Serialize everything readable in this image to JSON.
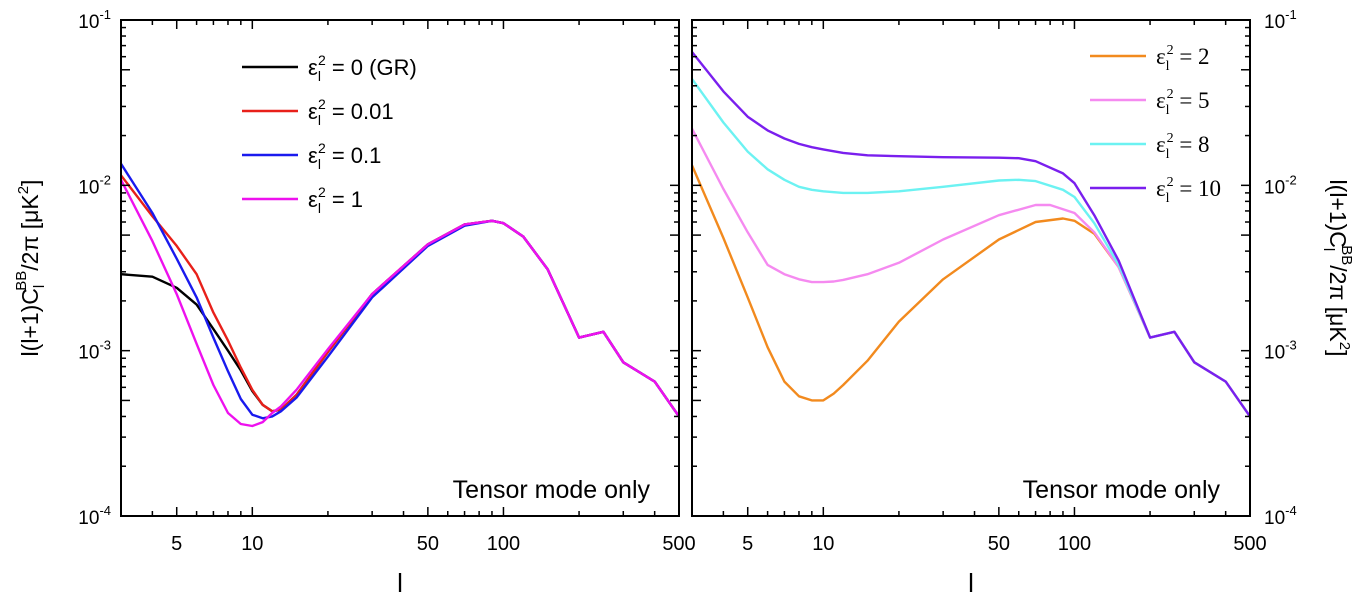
{
  "chart_data": [
    {
      "type": "line",
      "xscale": "log",
      "yscale": "log",
      "xlim": [
        3,
        500
      ],
      "ylim": [
        0.0001,
        0.1
      ],
      "xlabel": "l",
      "ylabel_parts": {
        "pre": "l(l+1)C",
        "sub": "l",
        "sup": "BB",
        "post": "/2π [μK",
        "unit_sup": "2",
        "end": "]"
      },
      "x_ticks": [
        {
          "value": 5,
          "label": "5"
        },
        {
          "value": 10,
          "label": "10"
        },
        {
          "value": 50,
          "label": "50"
        },
        {
          "value": 100,
          "label": "100"
        },
        {
          "value": 500,
          "label": "500"
        }
      ],
      "y_ticks": [
        {
          "value": 0.1,
          "mant": "10",
          "exp": "-1"
        },
        {
          "value": 0.01,
          "mant": "10",
          "exp": "-2"
        },
        {
          "value": 0.001,
          "mant": "10",
          "exp": "-3"
        },
        {
          "value": 0.0001,
          "mant": "10",
          "exp": "-4"
        }
      ],
      "annotation": "Tensor mode only",
      "legend_position": "top-center",
      "series": [
        {
          "name": "0 (GR)",
          "color": "#000000",
          "x": [
            3,
            4,
            5,
            6,
            7,
            8,
            9,
            10,
            11,
            12,
            13,
            15,
            20,
            30,
            50,
            70,
            90,
            100,
            120,
            150,
            200,
            250,
            300,
            400,
            500
          ],
          "y": [
            0.0029,
            0.0028,
            0.0024,
            0.0019,
            0.00135,
            0.001,
            0.00076,
            0.00057,
            0.00047,
            0.00043,
            0.00044,
            0.00054,
            0.00098,
            0.0022,
            0.0044,
            0.0058,
            0.0061,
            0.0059,
            0.0049,
            0.0031,
            0.0012,
            0.0013,
            0.00085,
            0.00065,
            0.0004
          ]
        },
        {
          "name": "0.01",
          "color": "#e8201a",
          "x": [
            3,
            4,
            5,
            6,
            7,
            8,
            9,
            10,
            11,
            12,
            13,
            15,
            20,
            30,
            50,
            70,
            90,
            100,
            120,
            150,
            200,
            250,
            300,
            400,
            500
          ],
          "y": [
            0.0115,
            0.0065,
            0.0043,
            0.0029,
            0.0017,
            0.00115,
            0.00079,
            0.00058,
            0.00047,
            0.00043,
            0.00044,
            0.00054,
            0.00098,
            0.0022,
            0.0044,
            0.0058,
            0.0061,
            0.0059,
            0.0049,
            0.0031,
            0.0012,
            0.0013,
            0.00085,
            0.00065,
            0.0004
          ]
        },
        {
          "name": "0.1",
          "color": "#1a1aee",
          "x": [
            3,
            4,
            5,
            6,
            7,
            8,
            9,
            10,
            11,
            12,
            13,
            15,
            20,
            30,
            50,
            70,
            90,
            100,
            120,
            150,
            200,
            250,
            300,
            400,
            500
          ],
          "y": [
            0.0135,
            0.0068,
            0.0036,
            0.0021,
            0.0012,
            0.00075,
            0.00051,
            0.00041,
            0.00039,
            0.0004,
            0.00043,
            0.00052,
            0.00092,
            0.0021,
            0.0043,
            0.0057,
            0.0061,
            0.0059,
            0.0049,
            0.0031,
            0.0012,
            0.0013,
            0.00085,
            0.00065,
            0.0004
          ]
        },
        {
          "name": "1",
          "color": "#ee11ee",
          "x": [
            3,
            4,
            5,
            6,
            7,
            8,
            9,
            10,
            11,
            12,
            13,
            15,
            20,
            30,
            50,
            70,
            90,
            100,
            120,
            150,
            200,
            250,
            300,
            400,
            500
          ],
          "y": [
            0.0108,
            0.0046,
            0.0022,
            0.0011,
            0.00062,
            0.00042,
            0.00036,
            0.00035,
            0.00037,
            0.00042,
            0.00046,
            0.00058,
            0.00102,
            0.0022,
            0.0044,
            0.0058,
            0.0061,
            0.0059,
            0.0049,
            0.0031,
            0.0012,
            0.0013,
            0.00085,
            0.00065,
            0.0004
          ]
        }
      ]
    },
    {
      "type": "line",
      "xscale": "log",
      "yscale": "log",
      "xlim": [
        3,
        500
      ],
      "ylim": [
        0.0001,
        0.1
      ],
      "xlabel": "l",
      "ylabel_parts": {
        "pre": "l(l+1)C",
        "sub": "l",
        "sup": "BB",
        "post": "/2π [μK",
        "unit_sup": "2",
        "end": "]"
      },
      "x_ticks": [
        {
          "value": 5,
          "label": "5"
        },
        {
          "value": 10,
          "label": "10"
        },
        {
          "value": 50,
          "label": "50"
        },
        {
          "value": 100,
          "label": "100"
        },
        {
          "value": 500,
          "label": "500"
        }
      ],
      "y_ticks": [
        {
          "value": 0.1,
          "mant": "10",
          "exp": "-1"
        },
        {
          "value": 0.01,
          "mant": "10",
          "exp": "-2"
        },
        {
          "value": 0.001,
          "mant": "10",
          "exp": "-3"
        },
        {
          "value": 0.0001,
          "mant": "10",
          "exp": "-4"
        }
      ],
      "annotation": "Tensor mode only",
      "legend_position": "top-right",
      "series": [
        {
          "name": "2",
          "color": "#f28a1e",
          "x": [
            3,
            4,
            5,
            6,
            7,
            8,
            9,
            10,
            11,
            12,
            15,
            20,
            30,
            50,
            70,
            90,
            100,
            120,
            150,
            200,
            250,
            300,
            400,
            500
          ],
          "y": [
            0.0132,
            0.0048,
            0.0021,
            0.00105,
            0.00065,
            0.00053,
            0.0005,
            0.0005,
            0.00055,
            0.00062,
            0.00087,
            0.0015,
            0.0027,
            0.0047,
            0.006,
            0.0063,
            0.0061,
            0.0051,
            0.0032,
            0.0012,
            0.0013,
            0.00085,
            0.00065,
            0.0004
          ]
        },
        {
          "name": "5",
          "color": "#f58af0",
          "x": [
            3,
            4,
            5,
            6,
            7,
            8,
            9,
            10,
            11,
            12,
            15,
            20,
            30,
            50,
            70,
            80,
            100,
            120,
            150,
            200,
            250,
            300,
            400,
            500
          ],
          "y": [
            0.022,
            0.0095,
            0.0052,
            0.0033,
            0.0029,
            0.0027,
            0.0026,
            0.0026,
            0.00262,
            0.00268,
            0.0029,
            0.0034,
            0.0047,
            0.0066,
            0.0076,
            0.0076,
            0.0068,
            0.0052,
            0.0032,
            0.0012,
            0.0013,
            0.00085,
            0.00065,
            0.0004
          ]
        },
        {
          "name": "8",
          "color": "#6cf2f2",
          "x": [
            3,
            4,
            5,
            6,
            7,
            8,
            9,
            10,
            12,
            15,
            20,
            30,
            50,
            60,
            70,
            90,
            100,
            120,
            150,
            200,
            250,
            300,
            400,
            500
          ],
          "y": [
            0.044,
            0.024,
            0.016,
            0.0125,
            0.0108,
            0.0098,
            0.0094,
            0.0092,
            0.009,
            0.009,
            0.0092,
            0.0098,
            0.0107,
            0.0108,
            0.0106,
            0.0094,
            0.0085,
            0.0059,
            0.0033,
            0.0012,
            0.0013,
            0.00085,
            0.00065,
            0.0004
          ]
        },
        {
          "name": "10",
          "color": "#7a1fee",
          "x": [
            3,
            4,
            5,
            6,
            7,
            8,
            9,
            10,
            12,
            15,
            20,
            30,
            50,
            60,
            70,
            90,
            100,
            120,
            150,
            200,
            250,
            300,
            400,
            500
          ],
          "y": [
            0.064,
            0.037,
            0.026,
            0.0215,
            0.0192,
            0.0178,
            0.017,
            0.0165,
            0.0157,
            0.0152,
            0.015,
            0.0148,
            0.0147,
            0.0146,
            0.014,
            0.0118,
            0.0103,
            0.0066,
            0.0035,
            0.0012,
            0.0013,
            0.00085,
            0.00065,
            0.0004
          ]
        }
      ]
    }
  ]
}
